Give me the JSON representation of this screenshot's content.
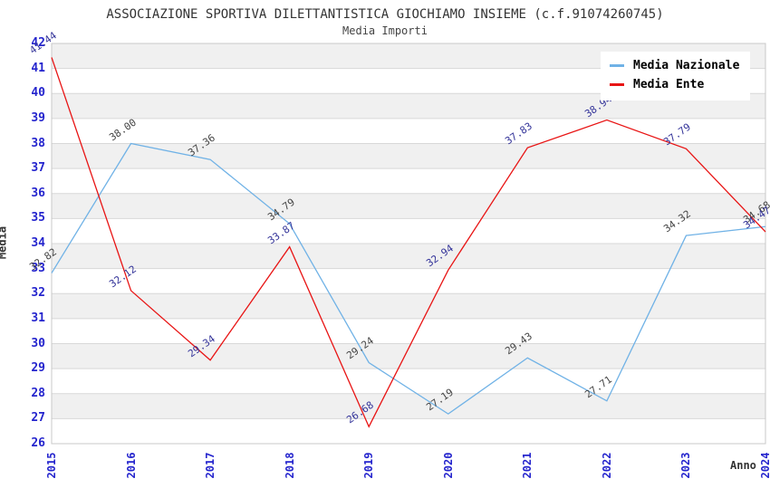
{
  "header": {
    "title": "ASSOCIAZIONE SPORTIVA DILETTANTISTICA GIOCHIAMO INSIEME (c.f.91074260745)",
    "subtitle": "Media Importi"
  },
  "legend": {
    "items": [
      {
        "label": "Media Nazionale",
        "color": "#70B2E6"
      },
      {
        "label": "Media Ente",
        "color": "#E81414"
      }
    ]
  },
  "chart_data": {
    "type": "line",
    "title": "Media Importi",
    "xlabel": "Anno",
    "ylabel": "Media",
    "ylim": [
      26,
      42
    ],
    "ytick_step": 1,
    "grid": {
      "band_colors": [
        "#f0f0f0",
        "#ffffff"
      ],
      "line_color": "#d8d8d8",
      "border_color": "#c8c8c8"
    },
    "legend_position": "top-right",
    "categories": [
      "2015",
      "2016",
      "2017",
      "2018",
      "2019",
      "2020",
      "2021",
      "2022",
      "2023",
      "2024"
    ],
    "series": [
      {
        "name": "Media Nazionale",
        "color": "#70B2E6",
        "label_color": "#444444",
        "values": [
          32.82,
          38.0,
          37.36,
          34.79,
          29.24,
          27.19,
          29.43,
          27.71,
          34.32,
          34.68
        ]
      },
      {
        "name": "Media Ente",
        "color": "#E81414",
        "label_color": "#333399",
        "values": [
          41.44,
          32.12,
          29.34,
          33.87,
          26.68,
          32.94,
          37.83,
          38.94,
          37.79,
          34.47
        ]
      }
    ]
  },
  "colors": {
    "axis_tick": "#2424CD",
    "axis_title": "#333333"
  }
}
